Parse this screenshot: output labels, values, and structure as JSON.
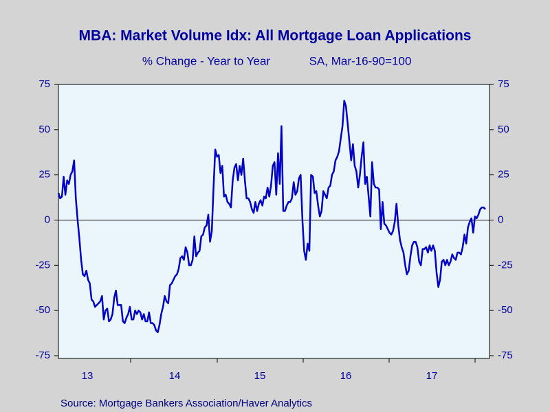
{
  "chart_data": {
    "type": "line",
    "title": "MBA: Market Volume Idx: All Mortgage Loan Applications",
    "subtitle": "% Change - Year to Year",
    "subtitle2": "SA, Mar-16-90=100",
    "source": "Source:  Mortgage Bankers Association/Haver Analytics",
    "x_labels": [
      "13",
      "14",
      "15",
      "16",
      "17"
    ],
    "color": "#0000c8",
    "ylim": [
      -75,
      75
    ],
    "yticks": [
      75,
      50,
      25,
      0,
      -25,
      -50,
      -75
    ],
    "y2lim": [
      -75,
      75
    ],
    "y2ticks": [
      75,
      50,
      25,
      0,
      -25,
      -50,
      -75
    ],
    "zero_line": true,
    "values": [
      15,
      12,
      13,
      24,
      14,
      22,
      20,
      25,
      27,
      33,
      12,
      0,
      -10,
      -22,
      -30,
      -31,
      -28,
      -33,
      -35,
      -44,
      -45,
      -48,
      -47,
      -46,
      -45,
      -42,
      -55,
      -50,
      -49,
      -56,
      -55,
      -52,
      -43,
      -39,
      -47,
      -47,
      -47,
      -56,
      -57,
      -54,
      -52,
      -48,
      -55,
      -55,
      -50,
      -52,
      -50,
      -51,
      -55,
      -52,
      -56,
      -56,
      -51,
      -57,
      -57,
      -58,
      -61,
      -62,
      -58,
      -52,
      -48,
      -42,
      -45,
      -46,
      -36,
      -35,
      -33,
      -31,
      -30,
      -27,
      -21,
      -20,
      -22,
      -15,
      -18,
      -25,
      -25,
      -22,
      -9,
      -20,
      -18,
      -17,
      -9,
      -8,
      -4,
      -3,
      3,
      -12,
      -6,
      18,
      39,
      35,
      36,
      26,
      30,
      13,
      14,
      10,
      9,
      7,
      22,
      29,
      31,
      22,
      30,
      25,
      34,
      22,
      12,
      12,
      10,
      6,
      4,
      10,
      5,
      9,
      11,
      8,
      13,
      12,
      18,
      13,
      19,
      30,
      32,
      14,
      37,
      20,
      52,
      5,
      5,
      8,
      10,
      10,
      12,
      21,
      14,
      16,
      23,
      25,
      0,
      -17,
      -22,
      -13,
      -17,
      25,
      24,
      15,
      16,
      8,
      2,
      5,
      16,
      14,
      12,
      18,
      19,
      25,
      27,
      33,
      35,
      38,
      45,
      52,
      66,
      63,
      53,
      43,
      33,
      42,
      30,
      27,
      18,
      25,
      35,
      43,
      20,
      24,
      13,
      2,
      32,
      20,
      18,
      18,
      17,
      -5,
      10,
      -2,
      -3,
      -5,
      -7,
      -8,
      -6,
      -1,
      9,
      -3,
      -11,
      -15,
      -18,
      -25,
      -30,
      -28,
      -20,
      -14,
      -12,
      -12,
      -15,
      -23,
      -25,
      -16,
      -16,
      -15,
      -18,
      -14,
      -17,
      -14,
      -17,
      -29,
      -37,
      -33,
      -23,
      -22,
      -25,
      -22,
      -25,
      -23,
      -19,
      -21,
      -22,
      -18,
      -18,
      -19,
      -15,
      -8,
      -13,
      -4,
      -1,
      1,
      -7,
      2,
      1,
      3,
      6,
      7,
      7,
      6
    ]
  }
}
